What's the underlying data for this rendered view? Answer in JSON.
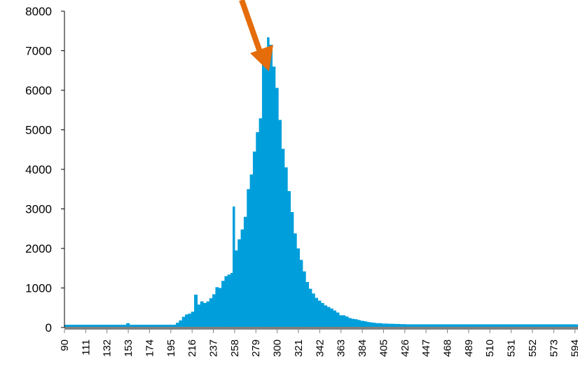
{
  "chart_data": {
    "type": "bar",
    "title": "",
    "xlabel": "",
    "ylabel": "",
    "ylim": [
      0,
      8000
    ],
    "y_ticks": [
      "0",
      "1000",
      "2000",
      "3000",
      "4000",
      "5000",
      "6000",
      "7000",
      "8000"
    ],
    "x_range": [
      90,
      597
    ],
    "x_ticks": [
      "90",
      "111",
      "132",
      "153",
      "174",
      "195",
      "216",
      "237",
      "258",
      "279",
      "300",
      "321",
      "342",
      "363",
      "384",
      "405",
      "426",
      "447",
      "468",
      "489",
      "510",
      "531",
      "552",
      "573",
      "594"
    ],
    "grid": false,
    "legend": "none",
    "bar_color": "#009fdb",
    "axis_color": "#808080",
    "annotation": {
      "type": "arrow",
      "color": "#e46c0a"
    },
    "series": [
      {
        "points": [
          [
            90,
            70
          ],
          [
            150,
            70
          ],
          [
            151,
            110
          ],
          [
            153,
            110
          ],
          [
            154,
            70
          ],
          [
            198,
            70
          ],
          [
            200,
            120
          ],
          [
            203,
            180
          ],
          [
            206,
            270
          ],
          [
            209,
            330
          ],
          [
            212,
            350
          ],
          [
            215,
            400
          ],
          [
            218,
            830
          ],
          [
            221,
            580
          ],
          [
            224,
            660
          ],
          [
            227,
            620
          ],
          [
            230,
            660
          ],
          [
            233,
            740
          ],
          [
            236,
            840
          ],
          [
            239,
            1020
          ],
          [
            242,
            1000
          ],
          [
            245,
            1180
          ],
          [
            248,
            1300
          ],
          [
            251,
            1340
          ],
          [
            254,
            1380
          ],
          [
            256,
            3060
          ],
          [
            258,
            1950
          ],
          [
            261,
            2230
          ],
          [
            264,
            2480
          ],
          [
            267,
            2800
          ],
          [
            270,
            3500
          ],
          [
            273,
            3870
          ],
          [
            276,
            4450
          ],
          [
            279,
            4940
          ],
          [
            282,
            5290
          ],
          [
            285,
            6960
          ],
          [
            288,
            7060
          ],
          [
            290,
            7340
          ],
          [
            292,
            7150
          ],
          [
            295,
            6600
          ],
          [
            298,
            6060
          ],
          [
            301,
            5250
          ],
          [
            304,
            4520
          ],
          [
            307,
            4050
          ],
          [
            310,
            3450
          ],
          [
            313,
            2920
          ],
          [
            316,
            2380
          ],
          [
            319,
            2000
          ],
          [
            322,
            1710
          ],
          [
            325,
            1420
          ],
          [
            328,
            1150
          ],
          [
            331,
            980
          ],
          [
            334,
            860
          ],
          [
            337,
            750
          ],
          [
            340,
            680
          ],
          [
            343,
            620
          ],
          [
            346,
            560
          ],
          [
            349,
            520
          ],
          [
            352,
            480
          ],
          [
            355,
            430
          ],
          [
            358,
            380
          ],
          [
            361,
            310
          ],
          [
            364,
            310
          ],
          [
            367,
            280
          ],
          [
            370,
            240
          ],
          [
            373,
            220
          ],
          [
            376,
            210
          ],
          [
            379,
            190
          ],
          [
            382,
            170
          ],
          [
            385,
            160
          ],
          [
            388,
            140
          ],
          [
            391,
            130
          ],
          [
            394,
            120
          ],
          [
            397,
            110
          ],
          [
            400,
            110
          ],
          [
            403,
            100
          ],
          [
            406,
            100
          ],
          [
            409,
            95
          ],
          [
            412,
            95
          ],
          [
            415,
            90
          ],
          [
            418,
            90
          ],
          [
            421,
            85
          ],
          [
            424,
            85
          ],
          [
            427,
            80
          ],
          [
            430,
            80
          ],
          [
            433,
            80
          ],
          [
            597,
            70
          ]
        ]
      }
    ]
  }
}
